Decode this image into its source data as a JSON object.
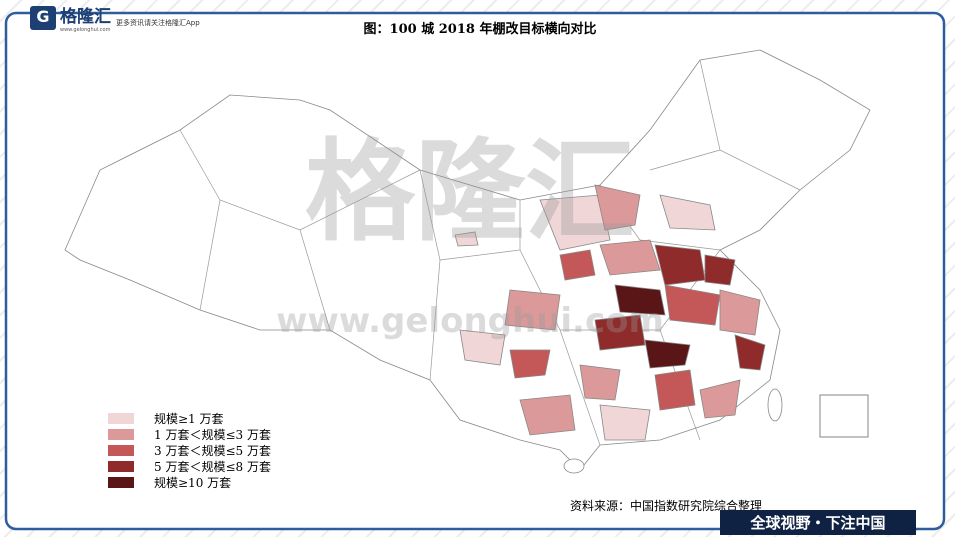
{
  "header": {
    "logo": "格隆汇",
    "logo_url": "www.gelonghui.com",
    "tagline": "更多资讯请关注格隆汇App"
  },
  "title": "图：100 城 2018 年棚改目标横向对比",
  "watermark": {
    "text": "格隆汇",
    "url": "www.gelonghui.com"
  },
  "legend": [
    {
      "label": "规模≥1 万套",
      "color": "#f0d6d6"
    },
    {
      "label": "1 万套＜规模≤3 万套",
      "color": "#dc9999"
    },
    {
      "label": "3 万套＜规模≤5 万套",
      "color": "#c45858"
    },
    {
      "label": "5 万套＜规模≤8 万套",
      "color": "#8f2b2b"
    },
    {
      "label": "规模≥10 万套",
      "color": "#5a1616"
    }
  ],
  "source": "资料来源：中国指数研究院综合整理",
  "footer": "全球视野・下注中国"
}
